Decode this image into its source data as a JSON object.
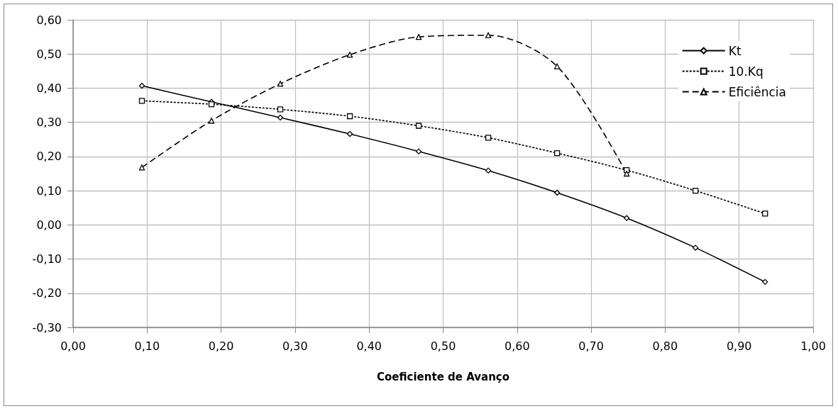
{
  "chart_data": {
    "type": "line",
    "xlabel": "Coeficiente de Avanço",
    "x": [
      0.093,
      0.187,
      0.28,
      0.374,
      0.467,
      0.561,
      0.654,
      0.748,
      0.841,
      0.935
    ],
    "series": [
      {
        "name": "Kt",
        "color": "#000000",
        "marker": "diamond",
        "line_style": "solid",
        "values": [
          0.407,
          0.36,
          0.314,
          0.266,
          0.215,
          0.159,
          0.094,
          0.02,
          -0.067,
          -0.167
        ]
      },
      {
        "name": "10.Kq",
        "color": "#000000",
        "marker": "square",
        "line_style": "dotted",
        "values": [
          0.363,
          0.353,
          0.338,
          0.318,
          0.29,
          0.255,
          0.21,
          0.16,
          0.1,
          0.033
        ]
      },
      {
        "name": "Eficiência",
        "color": "#000000",
        "marker": "triangle",
        "line_style": "dashed",
        "values": [
          0.168,
          0.305,
          0.413,
          0.498,
          0.55,
          0.555,
          0.464,
          0.15,
          null,
          null
        ]
      }
    ],
    "xlim": [
      0,
      1
    ],
    "xticks": [
      {
        "value": 0,
        "label": "0,00"
      },
      {
        "value": 0.1,
        "label": "0,10"
      },
      {
        "value": 0.2,
        "label": "0,20"
      },
      {
        "value": 0.3,
        "label": "0,30"
      },
      {
        "value": 0.4,
        "label": "0,40"
      },
      {
        "value": 0.5,
        "label": "0,50"
      },
      {
        "value": 0.6,
        "label": "0,60"
      },
      {
        "value": 0.7,
        "label": "0,70"
      },
      {
        "value": 0.8,
        "label": "0,80"
      },
      {
        "value": 0.9,
        "label": "0,90"
      },
      {
        "value": 1,
        "label": "1,00"
      }
    ],
    "ylim": [
      -0.3,
      0.6
    ],
    "yticks": [
      {
        "value": -0.3,
        "label": "-0,30"
      },
      {
        "value": -0.2,
        "label": "-0,20"
      },
      {
        "value": -0.1,
        "label": "-0,10"
      },
      {
        "value": 0,
        "label": "0,00"
      },
      {
        "value": 0.1,
        "label": "0,10"
      },
      {
        "value": 0.2,
        "label": "0,20"
      },
      {
        "value": 0.3,
        "label": "0,30"
      },
      {
        "value": 0.4,
        "label": "0,40"
      },
      {
        "value": 0.5,
        "label": "0,50"
      },
      {
        "value": 0.6,
        "label": "0,60"
      }
    ],
    "grid": true,
    "legend": "top right"
  }
}
